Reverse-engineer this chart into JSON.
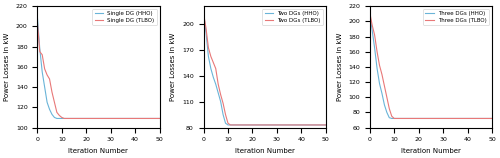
{
  "subplots": [
    {
      "title": "",
      "legend_labels": [
        "Single DG (HHO)",
        "Single DG (TLBO)"
      ],
      "line_colors": [
        "#6ab4d8",
        "#e87878"
      ],
      "ylim": [
        100,
        220
      ],
      "yticks": [
        100,
        120,
        140,
        160,
        180,
        200,
        220
      ],
      "xlim": [
        0,
        50
      ],
      "xticks": [
        0,
        10,
        20,
        30,
        40,
        50
      ],
      "hho_x": [
        0,
        1,
        2,
        3,
        4,
        5,
        6,
        7,
        8,
        9,
        10,
        50
      ],
      "hho_y": [
        210,
        178,
        155,
        140,
        125,
        118,
        113,
        110,
        109,
        109,
        109,
        109
      ],
      "tlbo_x": [
        0,
        1,
        2,
        3,
        4,
        5,
        6,
        7,
        8,
        9,
        10,
        11,
        12,
        50
      ],
      "tlbo_y": [
        205,
        175,
        172,
        158,
        152,
        148,
        135,
        125,
        115,
        112,
        110,
        109,
        109,
        109
      ]
    },
    {
      "title": "",
      "legend_labels": [
        "Two DGs (HHO)",
        "Two DGs (TLBO)"
      ],
      "line_colors": [
        "#6ab4d8",
        "#e87878"
      ],
      "ylim": [
        80,
        220
      ],
      "yticks": [
        80,
        110,
        140,
        170,
        200
      ],
      "xlim": [
        0,
        50
      ],
      "xticks": [
        0,
        10,
        20,
        30,
        40,
        50
      ],
      "hho_x": [
        0,
        1,
        2,
        3,
        4,
        5,
        6,
        7,
        8,
        9,
        10,
        50
      ],
      "hho_y": [
        212,
        190,
        162,
        148,
        138,
        130,
        120,
        110,
        95,
        85,
        83,
        83
      ],
      "tlbo_x": [
        0,
        1,
        2,
        3,
        4,
        5,
        6,
        7,
        8,
        9,
        10,
        11,
        50
      ],
      "tlbo_y": [
        212,
        195,
        172,
        162,
        155,
        148,
        130,
        118,
        108,
        95,
        85,
        83,
        83
      ]
    },
    {
      "title": "",
      "legend_labels": [
        "Three DGs (HHO)",
        "Three DGs (TLBO)"
      ],
      "line_colors": [
        "#6ab4d8",
        "#e87878"
      ],
      "ylim": [
        60,
        220
      ],
      "yticks": [
        60,
        80,
        100,
        120,
        140,
        160,
        180,
        200,
        220
      ],
      "xlim": [
        0,
        50
      ],
      "xticks": [
        0,
        10,
        20,
        30,
        40,
        50
      ],
      "hho_x": [
        0,
        1,
        2,
        3,
        4,
        5,
        6,
        7,
        8,
        9,
        50
      ],
      "hho_y": [
        210,
        188,
        165,
        138,
        118,
        105,
        90,
        80,
        73,
        72,
        72
      ],
      "tlbo_x": [
        0,
        1,
        2,
        3,
        4,
        5,
        6,
        7,
        8,
        9,
        10,
        50
      ],
      "tlbo_y": [
        212,
        195,
        182,
        160,
        142,
        130,
        115,
        100,
        85,
        75,
        72,
        72
      ]
    }
  ],
  "ylabel": "Power Losses in kW",
  "xlabel": "Iteration Number",
  "fig_width": 5.0,
  "fig_height": 1.58,
  "dpi": 100
}
